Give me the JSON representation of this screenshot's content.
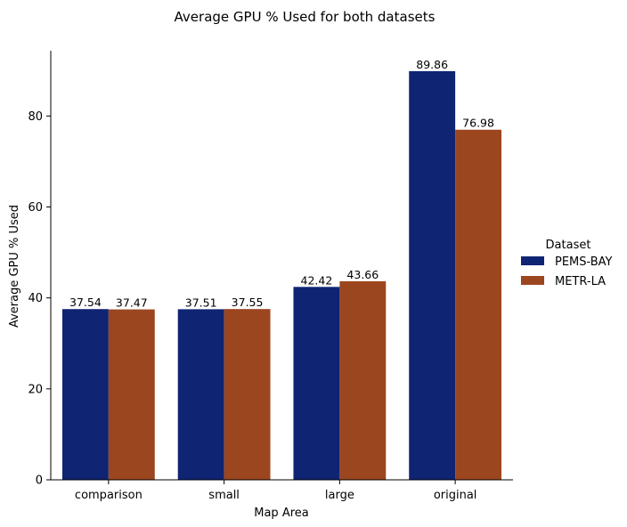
{
  "chart_data": {
    "type": "bar",
    "title": "Average GPU % Used for both datasets",
    "xlabel": "Map Area",
    "ylabel": "Average GPU % Used",
    "categories": [
      "comparison",
      "small",
      "large",
      "original"
    ],
    "series": [
      {
        "name": "PEMS-BAY",
        "values": [
          37.54,
          37.51,
          42.42,
          89.86
        ],
        "labels": [
          "37.54",
          "37.51",
          "42.42",
          "89.86"
        ],
        "color": "#0f2473"
      },
      {
        "name": "METR-LA",
        "values": [
          37.47,
          37.55,
          43.66,
          76.98
        ],
        "labels": [
          "37.47",
          "37.55",
          "43.66",
          "76.98"
        ],
        "color": "#9c4620"
      }
    ],
    "ylim": [
      0,
      94.35
    ],
    "yticks": [
      0,
      20,
      40,
      60,
      80
    ],
    "legend": {
      "title": "Dataset",
      "placement": "right"
    },
    "grid": false
  }
}
